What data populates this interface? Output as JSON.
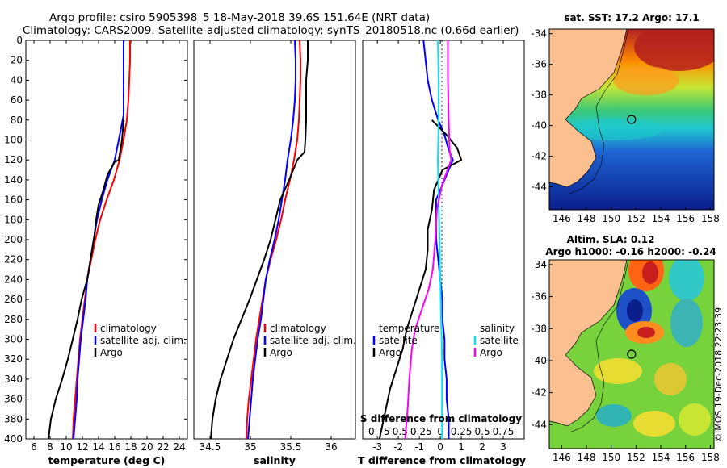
{
  "header": {
    "line1": "Argo profile: csiro 5905398_5 18-May-2018 39.6S 151.64E (NRT data)",
    "line2": "Climatology: CARS2009. Satellite-adjusted climatology: synTS_20180518.nc (0.66d earlier)"
  },
  "depth_ticks": [
    0,
    20,
    40,
    60,
    80,
    100,
    120,
    140,
    160,
    180,
    200,
    220,
    240,
    260,
    280,
    300,
    320,
    340,
    360,
    380,
    400
  ],
  "colors": {
    "climatology": "#ff0000",
    "satellite": "#0000ff",
    "argo": "#000000",
    "sat_salinity": "#00e5ff",
    "clim_salinity": "#ff00ff"
  },
  "chart_data": [
    {
      "type": "line",
      "id": "temperature",
      "xlabel": "temperature (deg C)",
      "xlim": [
        5,
        25
      ],
      "ylim": [
        400,
        0
      ],
      "xticks": [
        6,
        8,
        10,
        12,
        14,
        16,
        18,
        20,
        22,
        24
      ],
      "xtick_labels": [
        "6",
        "8",
        "10",
        "12",
        "14",
        "16",
        "18",
        "20",
        "22",
        "24"
      ],
      "series": [
        {
          "name": "climatology",
          "color": "#ff0000",
          "width": 2,
          "points": [
            [
              17.9,
              0
            ],
            [
              17.9,
              20
            ],
            [
              17.8,
              40
            ],
            [
              17.7,
              60
            ],
            [
              17.5,
              80
            ],
            [
              17.1,
              100
            ],
            [
              16.6,
              120
            ],
            [
              15.9,
              140
            ],
            [
              15.0,
              160
            ],
            [
              14.2,
              180
            ],
            [
              13.6,
              200
            ],
            [
              13.1,
              220
            ],
            [
              12.6,
              240
            ],
            [
              12.3,
              260
            ],
            [
              12.0,
              280
            ],
            [
              11.7,
              300
            ],
            [
              11.5,
              320
            ],
            [
              11.3,
              340
            ],
            [
              11.1,
              360
            ],
            [
              10.9,
              380
            ],
            [
              10.8,
              400
            ]
          ]
        },
        {
          "name": "satellite-adj. clim.",
          "color": "#0000ff",
          "width": 2,
          "points": [
            [
              17.1,
              0
            ],
            [
              17.1,
              20
            ],
            [
              17.1,
              40
            ],
            [
              17.1,
              60
            ],
            [
              17.1,
              75
            ],
            [
              16.5,
              100
            ],
            [
              16.0,
              120
            ],
            [
              15.1,
              140
            ],
            [
              14.4,
              160
            ],
            [
              13.8,
              180
            ],
            [
              13.4,
              200
            ],
            [
              13.0,
              220
            ],
            [
              12.6,
              240
            ],
            [
              12.4,
              260
            ],
            [
              12.1,
              280
            ],
            [
              11.8,
              300
            ],
            [
              11.6,
              320
            ],
            [
              11.4,
              340
            ],
            [
              11.3,
              360
            ],
            [
              11.1,
              380
            ],
            [
              10.9,
              400
            ]
          ]
        },
        {
          "name": "Argo",
          "color": "#000000",
          "width": 2,
          "points": [
            [
              17.1,
              80
            ],
            [
              16.9,
              100
            ],
            [
              16.7,
              110
            ],
            [
              16.5,
              120
            ],
            [
              16.0,
              122
            ],
            [
              15.1,
              135
            ],
            [
              14.6,
              150
            ],
            [
              14.0,
              165
            ],
            [
              13.7,
              180
            ],
            [
              13.5,
              195
            ],
            [
              13.1,
              215
            ],
            [
              12.6,
              240
            ],
            [
              11.9,
              260
            ],
            [
              11.4,
              280
            ],
            [
              10.8,
              300
            ],
            [
              10.2,
              320
            ],
            [
              9.5,
              340
            ],
            [
              8.7,
              360
            ],
            [
              8.1,
              380
            ],
            [
              7.8,
              400
            ]
          ]
        }
      ],
      "legend": [
        "climatology",
        "satellite-adj. clim.",
        "Argo"
      ]
    },
    {
      "type": "line",
      "id": "salinity",
      "xlabel": "salinity",
      "xlim": [
        34.3,
        36.3
      ],
      "ylim": [
        400,
        0
      ],
      "xticks": [
        34.5,
        35,
        35.5,
        36
      ],
      "xtick_labels": [
        "34.5",
        "35",
        "35.5",
        "36"
      ],
      "series": [
        {
          "name": "climatology",
          "color": "#ff0000",
          "width": 2,
          "points": [
            [
              35.61,
              0
            ],
            [
              35.62,
              20
            ],
            [
              35.62,
              40
            ],
            [
              35.61,
              60
            ],
            [
              35.6,
              80
            ],
            [
              35.58,
              100
            ],
            [
              35.54,
              120
            ],
            [
              35.49,
              140
            ],
            [
              35.43,
              160
            ],
            [
              35.38,
              180
            ],
            [
              35.32,
              200
            ],
            [
              35.25,
              220
            ],
            [
              35.19,
              240
            ],
            [
              35.15,
              260
            ],
            [
              35.11,
              280
            ],
            [
              35.07,
              300
            ],
            [
              35.04,
              320
            ],
            [
              35.01,
              340
            ],
            [
              34.98,
              360
            ],
            [
              34.96,
              380
            ],
            [
              34.95,
              400
            ]
          ]
        },
        {
          "name": "satellite-adj. clim.",
          "color": "#0000ff",
          "width": 2,
          "points": [
            [
              35.55,
              0
            ],
            [
              35.56,
              20
            ],
            [
              35.56,
              40
            ],
            [
              35.55,
              60
            ],
            [
              35.53,
              80
            ],
            [
              35.5,
              100
            ],
            [
              35.46,
              120
            ],
            [
              35.43,
              140
            ],
            [
              35.39,
              160
            ],
            [
              35.35,
              180
            ],
            [
              35.3,
              200
            ],
            [
              35.24,
              220
            ],
            [
              35.19,
              240
            ],
            [
              35.16,
              260
            ],
            [
              35.13,
              280
            ],
            [
              35.09,
              300
            ],
            [
              35.06,
              320
            ],
            [
              35.03,
              340
            ],
            [
              35.01,
              360
            ],
            [
              34.99,
              380
            ],
            [
              34.97,
              400
            ]
          ]
        },
        {
          "name": "Argo",
          "color": "#000000",
          "width": 2,
          "points": [
            [
              35.71,
              0
            ],
            [
              35.71,
              20
            ],
            [
              35.69,
              40
            ],
            [
              35.69,
              80
            ],
            [
              35.68,
              100
            ],
            [
              35.67,
              112
            ],
            [
              35.58,
              120
            ],
            [
              35.48,
              140
            ],
            [
              35.37,
              160
            ],
            [
              35.31,
              180
            ],
            [
              35.25,
              200
            ],
            [
              35.17,
              220
            ],
            [
              35.08,
              240
            ],
            [
              34.99,
              260
            ],
            [
              34.89,
              280
            ],
            [
              34.79,
              300
            ],
            [
              34.71,
              320
            ],
            [
              34.63,
              340
            ],
            [
              34.57,
              360
            ],
            [
              34.53,
              380
            ],
            [
              34.51,
              400
            ]
          ]
        }
      ],
      "legend": [
        "climatology",
        "satellite-adj. clim.",
        "Argo"
      ]
    },
    {
      "type": "line",
      "id": "difference",
      "xlabel": "T difference from climatology",
      "xlabel_top": "S difference from climatology",
      "xlim": [
        -3.7,
        4.0
      ],
      "ylim": [
        400,
        0
      ],
      "xticks": [
        -3,
        -2,
        -1,
        0,
        1,
        2,
        3
      ],
      "xtick_labels": [
        "-3",
        "-2",
        "-1",
        "0",
        "1",
        "2",
        "3"
      ],
      "s_ticks": [
        -0.75,
        -0.5,
        -0.25,
        0,
        0.25,
        0.5,
        0.75
      ],
      "s_tick_labels": [
        "-0.75",
        "-0.5",
        "-0.25",
        "0",
        "0.25",
        "0.5",
        "0.75"
      ],
      "series": [
        {
          "name": "T satellite",
          "color": "#0000ff",
          "width": 2,
          "points": [
            [
              -0.8,
              0
            ],
            [
              -0.7,
              20
            ],
            [
              -0.6,
              40
            ],
            [
              -0.4,
              60
            ],
            [
              -0.1,
              80
            ],
            [
              0.2,
              95
            ],
            [
              0.4,
              110
            ],
            [
              0.6,
              120
            ],
            [
              0.2,
              140
            ],
            [
              -0.2,
              160
            ],
            [
              -0.2,
              180
            ],
            [
              -0.2,
              200
            ],
            [
              -0.1,
              220
            ],
            [
              0.0,
              240
            ],
            [
              0.1,
              260
            ],
            [
              0.1,
              280
            ],
            [
              0.2,
              300
            ],
            [
              0.2,
              320
            ],
            [
              0.3,
              340
            ],
            [
              0.3,
              360
            ],
            [
              0.4,
              380
            ],
            [
              0.4,
              400
            ]
          ]
        },
        {
          "name": "T Argo",
          "color": "#000000",
          "width": 2,
          "points": [
            [
              -0.4,
              80
            ],
            [
              0.3,
              95
            ],
            [
              0.8,
              108
            ],
            [
              1.0,
              120
            ],
            [
              0.1,
              130
            ],
            [
              -0.3,
              150
            ],
            [
              -0.4,
              170
            ],
            [
              -0.6,
              190
            ],
            [
              -0.6,
              210
            ],
            [
              -0.7,
              230
            ],
            [
              -1.0,
              250
            ],
            [
              -1.3,
              270
            ],
            [
              -1.6,
              290
            ],
            [
              -1.8,
              310
            ],
            [
              -2.1,
              330
            ],
            [
              -2.4,
              350
            ],
            [
              -2.6,
              370
            ],
            [
              -2.8,
              390
            ],
            [
              -2.9,
              400
            ]
          ]
        },
        {
          "name": "S satellite",
          "color": "#00e5ff",
          "width": 2,
          "points": [
            [
              -0.03,
              0
            ],
            [
              -0.02,
              40
            ],
            [
              -0.02,
              80
            ],
            [
              -0.03,
              120
            ],
            [
              -0.02,
              160
            ],
            [
              -0.01,
              200
            ],
            [
              0.0,
              240
            ],
            [
              0.01,
              280
            ],
            [
              0.02,
              320
            ],
            [
              0.02,
              360
            ],
            [
              0.02,
              400
            ]
          ]
        },
        {
          "name": "S Argo",
          "color": "#ff00ff",
          "width": 2,
          "points": [
            [
              0.09,
              0
            ],
            [
              0.09,
              40
            ],
            [
              0.1,
              80
            ],
            [
              0.11,
              110
            ],
            [
              0.13,
              120
            ],
            [
              0.02,
              145
            ],
            [
              -0.04,
              170
            ],
            [
              -0.06,
              200
            ],
            [
              -0.09,
              230
            ],
            [
              -0.14,
              250
            ],
            [
              -0.22,
              270
            ],
            [
              -0.3,
              290
            ],
            [
              -0.34,
              310
            ],
            [
              -0.37,
              340
            ],
            [
              -0.39,
              370
            ],
            [
              -0.42,
              400
            ]
          ]
        }
      ],
      "legend_t_title": "temperature",
      "legend_t": [
        "satellite",
        "Argo"
      ],
      "legend_s_title": "salinity",
      "legend_s": [
        "satellite",
        "Argo"
      ]
    },
    {
      "type": "heatmap",
      "id": "sst_map",
      "title": "sat. SST: 17.2 Argo: 17.1",
      "xlim": [
        145,
        158.3
      ],
      "ylim": [
        -45.5,
        -33.7
      ],
      "xticks": [
        146,
        148,
        150,
        152,
        154,
        156,
        158
      ],
      "yticks": [
        -34,
        -36,
        -38,
        -40,
        -42,
        -44
      ],
      "profile_marker": [
        151.64,
        -39.6
      ]
    },
    {
      "type": "heatmap",
      "id": "sla_map",
      "title": "Altim. SLA: 0.12",
      "subtitle": "Argo h1000: -0.16 h2000: -0.24",
      "xlim": [
        145,
        158.3
      ],
      "ylim": [
        -45.5,
        -33.7
      ],
      "xticks": [
        146,
        148,
        150,
        152,
        154,
        156,
        158
      ],
      "yticks": [
        -34,
        -36,
        -38,
        -40,
        -42,
        -44
      ],
      "profile_marker": [
        151.64,
        -39.6
      ]
    }
  ],
  "credit": "©IMOS 19-Dec-2018 22:23:39"
}
